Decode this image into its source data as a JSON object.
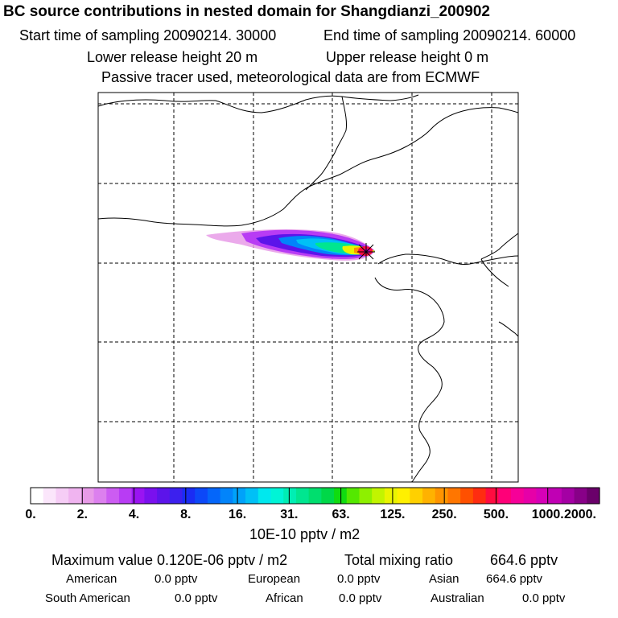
{
  "chart_data": {
    "type": "heatmap",
    "title": "BC  source contributions in nested domain for Shangdianzi_200902",
    "header": {
      "start_label": "Start time of sampling 20090214. 30000",
      "end_label": "End time of sampling 20090214. 60000",
      "lower_label": "Lower release height   20 m",
      "upper_label": "Upper release height    0 m",
      "note": "Passive tracer used, meteorological data are from ECMWF"
    },
    "receptor": "Shangdianzi",
    "colorbar": {
      "ticks": [
        "0.",
        "2.",
        "4.",
        "8.",
        "16.",
        "31.",
        "63.",
        "125.",
        "250.",
        "500.",
        "1000.",
        "2000."
      ],
      "unit": "10E-10 pptv / m2",
      "colors": [
        "#ffffff",
        "#fbe6fb",
        "#f6cdf6",
        "#f0b4f0",
        "#e89be8",
        "#dc80ee",
        "#cc5cf2",
        "#b83cf4",
        "#9a14f2",
        "#7a10ee",
        "#5c14ea",
        "#3c20ee",
        "#1a2cf4",
        "#0c48f8",
        "#0466fa",
        "#0284fa",
        "#00a2fa",
        "#00c0f6",
        "#00e8ee",
        "#00f4d6",
        "#00eeb4",
        "#00e690",
        "#00de6e",
        "#00d848",
        "#10dc10",
        "#54e800",
        "#8ef000",
        "#c2f400",
        "#eaf400",
        "#fff000",
        "#ffd000",
        "#ffb200",
        "#ff9400",
        "#ff7600",
        "#ff5000",
        "#ff2c10",
        "#ff0c40",
        "#ff0078",
        "#f60098",
        "#e600a8",
        "#d600b8",
        "#c000b4",
        "#a400a4",
        "#880088",
        "#6a006a"
      ]
    },
    "footer": {
      "max_label": "Maximum value  0.120E-06 pptv / m2",
      "total_label": "Total mixing ratio",
      "total_value": "664.6 pptv",
      "regions": [
        {
          "name": "American",
          "value": "0.0 pptv"
        },
        {
          "name": "European",
          "value": "0.0 pptv"
        },
        {
          "name": "Asian",
          "value": "664.6 pptv"
        },
        {
          "name": "South American",
          "value": "0.0 pptv"
        },
        {
          "name": "African",
          "value": "0.0 pptv"
        },
        {
          "name": "Australian",
          "value": "0.0 pptv"
        }
      ]
    }
  }
}
